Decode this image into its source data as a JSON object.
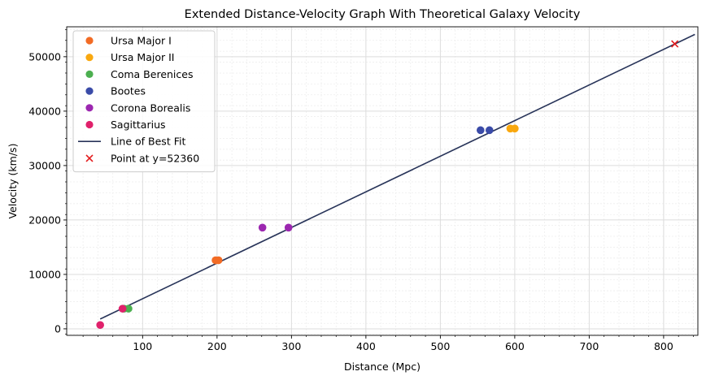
{
  "chart_data": {
    "type": "scatter",
    "title": "Extended Distance-Velocity Graph With Theoretical Galaxy Velocity",
    "xlabel": "Distance (Mpc)",
    "ylabel": "Velocity (km/s)",
    "xlim": [
      -2,
      846
    ],
    "ylim": [
      -1200,
      55500
    ],
    "x_ticks": [
      100,
      200,
      300,
      400,
      500,
      600,
      700,
      800
    ],
    "y_ticks": [
      0,
      10000,
      20000,
      30000,
      40000,
      50000
    ],
    "grid": true,
    "minor_grid": true,
    "legend_position": "upper left",
    "series": [
      {
        "name": "Ursa Major I",
        "color": "#f26b24",
        "marker": "circle",
        "points": [
          [
            198,
            12600
          ],
          [
            202,
            12600
          ]
        ]
      },
      {
        "name": "Ursa Major II",
        "color": "#f9a80f",
        "marker": "circle",
        "points": [
          [
            594,
            36800
          ],
          [
            600,
            36800
          ]
        ]
      },
      {
        "name": "Coma Berenices",
        "color": "#4caf50",
        "marker": "circle",
        "points": [
          [
            75,
            3700
          ],
          [
            81,
            3700
          ]
        ]
      },
      {
        "name": "Bootes",
        "color": "#3a4ba8",
        "marker": "circle",
        "points": [
          [
            554,
            36500
          ],
          [
            566,
            36500
          ]
        ]
      },
      {
        "name": "Corona Borealis",
        "color": "#9c27b0",
        "marker": "circle",
        "points": [
          [
            261,
            18600
          ],
          [
            296,
            18600
          ]
        ]
      },
      {
        "name": "Sagittarius",
        "color": "#e0216b",
        "marker": "circle",
        "points": [
          [
            73,
            3700
          ],
          [
            43,
            700
          ]
        ]
      },
      {
        "name": "Line of Best Fit",
        "color": "#283459",
        "marker": "line",
        "points": [
          [
            43,
            1800
          ],
          [
            842,
            54100
          ]
        ]
      },
      {
        "name": "Point at y=52360",
        "color": "#e31a1c",
        "marker": "x",
        "points": [
          [
            815,
            52360
          ]
        ]
      }
    ]
  }
}
